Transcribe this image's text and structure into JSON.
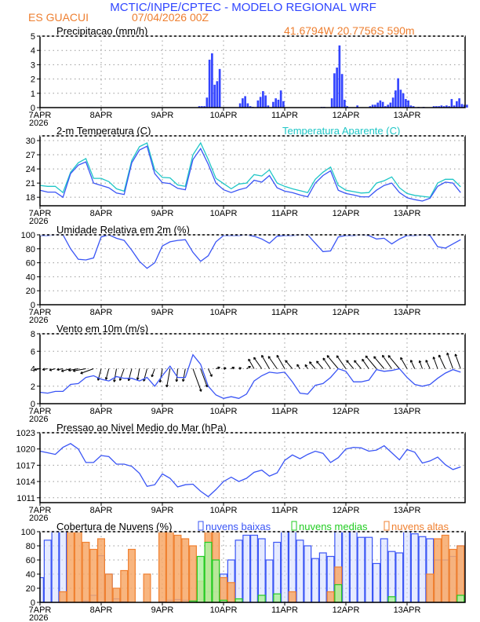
{
  "header": {
    "title": "MCTIC/INPE/CPTEC - MODELO REGIONAL WRF",
    "location": "ES GUACUI",
    "run": "07/04/2026 00Z",
    "coords": "41.6794W 20.7756S 590m"
  },
  "colors": {
    "title": "#2f45ff",
    "subtitle": "#ee7f30",
    "line_main": "#3a55f5",
    "line_apparent": "#1fc6c6",
    "bar_precip": "#3344ff",
    "cloud_low": "#3a55f5",
    "cloud_mid": "#22cc22",
    "cloud_high": "#f08030"
  },
  "x_axis": {
    "start": "07APR2026 00Z",
    "end": "13APR2026 23Z",
    "tick_labels": [
      "7APR",
      "8APR",
      "9APR",
      "10APR",
      "11APR",
      "12APR",
      "13APR"
    ],
    "year_label": "2026"
  },
  "chart_data": [
    {
      "type": "bar",
      "title": "Precipitacao (mm/h)",
      "interval": "hourly",
      "ylim": [
        0,
        5
      ],
      "yticks": [
        0,
        1,
        2,
        3,
        4,
        5
      ],
      "grid": true,
      "values": [
        0,
        0,
        0,
        0,
        0,
        0,
        0,
        0,
        0,
        0,
        0,
        0,
        0,
        0,
        0,
        0,
        0,
        0,
        0.03,
        0.03,
        0.03,
        0,
        0,
        0,
        0,
        0,
        0,
        0,
        0,
        0,
        0,
        0,
        0,
        0,
        0,
        0,
        0,
        0,
        0,
        0,
        0,
        0,
        0,
        0,
        0,
        0,
        0.03,
        0,
        0,
        0,
        0,
        0,
        0,
        0,
        0,
        0,
        0,
        0,
        0,
        0,
        0,
        0,
        0.1,
        0.1,
        0.1,
        0.7,
        3.35,
        3.8,
        1.6,
        1.85,
        2.7,
        0,
        0,
        0,
        0,
        0,
        0,
        0,
        0.3,
        0.65,
        0.8,
        0.3,
        0.1,
        0.05,
        0,
        0.5,
        0.75,
        1.15,
        0.85,
        0.15,
        0,
        0.4,
        0.65,
        0.55,
        1.2,
        0.45,
        0,
        0,
        0,
        0,
        0,
        0,
        0,
        0,
        0,
        0,
        0,
        0,
        0,
        0,
        0.05,
        0.05,
        0,
        0,
        0.65,
        2.4,
        2.8,
        4.35,
        2.35,
        0.55,
        0.1,
        0,
        0,
        0,
        0.15,
        0,
        0,
        0,
        0,
        0.1,
        0.2,
        0.2,
        0.35,
        0.5,
        0.4,
        0.1,
        0.2,
        0.35,
        0.7,
        1.2,
        2.05,
        1.25,
        1.0,
        0.6,
        0.5,
        0.15,
        0.1,
        0,
        0.05,
        0,
        0.05,
        0,
        0,
        0,
        0.1,
        0.1,
        0.1,
        0.15,
        0.1,
        0.15,
        0.1,
        0.6,
        0.15,
        0.45,
        0.65,
        0.25,
        0.2,
        0.2
      ]
    },
    {
      "type": "line",
      "title": "2-m Temperatura (C)",
      "interval": "3-hourly",
      "ylim": [
        16.2,
        31
      ],
      "yticks": [
        18,
        21,
        24,
        27,
        30
      ],
      "grid": true,
      "series": [
        {
          "name": "2-m Temperatura (C)",
          "values": [
            19.5,
            19.1,
            19.1,
            18.0,
            23.0,
            24.8,
            25.5,
            21.0,
            20.5,
            20.0,
            18.9,
            18.6,
            25.3,
            28.0,
            28.8,
            23.0,
            21.1,
            20.9,
            19.9,
            19.6,
            26.0,
            28.3,
            25.0,
            21.0,
            19.6,
            19.0,
            19.6,
            20.0,
            21.6,
            21.2,
            22.6,
            20.0,
            19.3,
            19.0,
            18.5,
            18.1,
            21.0,
            22.6,
            23.6,
            19.5,
            18.8,
            18.5,
            18.1,
            18.1,
            19.5,
            20.5,
            21.0,
            19.0,
            17.9,
            17.5,
            17.2,
            17.8,
            20.3,
            21.2,
            21.0,
            19.0
          ]
        },
        {
          "name": "Temperatura Aparente (C)",
          "values": [
            20.5,
            20.3,
            20.3,
            19.0,
            23.3,
            25.3,
            26.2,
            22.0,
            22.0,
            21.3,
            19.8,
            19.3,
            25.8,
            28.7,
            29.5,
            23.8,
            22.2,
            22.1,
            20.6,
            20.3,
            27.0,
            29.5,
            26.0,
            22.0,
            20.9,
            19.8,
            20.8,
            21.0,
            22.8,
            22.5,
            23.8,
            21.0,
            20.3,
            19.8,
            19.4,
            19.0,
            21.8,
            23.3,
            24.4,
            20.5,
            19.5,
            19.2,
            18.9,
            19.0,
            21.0,
            21.5,
            22.3,
            20.0,
            18.8,
            18.4,
            18.2,
            18.0,
            21.0,
            21.8,
            21.8,
            20.2
          ]
        }
      ]
    },
    {
      "type": "line",
      "title": "Umidade Relativa em 2m (%)",
      "interval": "3-hourly",
      "ylim": [
        0,
        100
      ],
      "yticks": [
        0,
        20,
        40,
        60,
        80,
        100
      ],
      "grid": true,
      "values": [
        99,
        99,
        100,
        100,
        80,
        65,
        64,
        67,
        97,
        100,
        95,
        92,
        78,
        62,
        52,
        60,
        84,
        90,
        92,
        93,
        75,
        62,
        70,
        90,
        99,
        99,
        99,
        100,
        98,
        94,
        88,
        98,
        99,
        99,
        100,
        100,
        88,
        76,
        77,
        97,
        99,
        99,
        100,
        99,
        94,
        95,
        87,
        94,
        99,
        99,
        100,
        99,
        83,
        81,
        87,
        93
      ]
    },
    {
      "type": "line",
      "title": "Vento em 10m (m/s)",
      "interval": "3-hourly",
      "ylim": [
        0,
        8
      ],
      "yticks": [
        0,
        2,
        4,
        6,
        8
      ],
      "grid": true,
      "speed": [
        1.3,
        1.2,
        1.4,
        1.4,
        2.2,
        2.3,
        3.0,
        3.2,
        2.8,
        2.6,
        3.1,
        2.9,
        2.9,
        2.6,
        3.0,
        2.0,
        3.2,
        4.3,
        3.0,
        3.0,
        5.6,
        4.5,
        2.0,
        1.0,
        0.6,
        0.8,
        0.6,
        1.1,
        2.6,
        3.2,
        3.6,
        3.5,
        3.6,
        2.5,
        1.2,
        1.1,
        2.1,
        2.3,
        3.0,
        4.0,
        3.7,
        2.5,
        2.5,
        2.7,
        3.9,
        3.7,
        3.8,
        4.0,
        3.0,
        2.2,
        2.0,
        2.2,
        2.9,
        3.5,
        3.9,
        3.6
      ],
      "direction_from_deg": [
        80,
        80,
        75,
        80,
        75,
        80,
        80,
        70,
        15,
        15,
        10,
        20,
        15,
        10,
        15,
        20,
        10,
        10,
        5,
        10,
        340,
        340,
        335,
        250,
        250,
        245,
        250,
        240,
        150,
        145,
        150,
        145,
        150,
        140,
        145,
        150,
        140,
        140,
        145,
        140,
        145,
        140,
        140,
        145,
        140,
        140,
        145,
        140,
        150,
        155,
        160,
        155,
        160,
        155,
        160,
        160
      ]
    },
    {
      "type": "line",
      "title": "Pressao ao Nivel Medio do Mar (hPa)",
      "interval": "3-hourly",
      "ylim": [
        1010.1,
        1023
      ],
      "yticks": [
        1011,
        1014,
        1017,
        1020,
        1023
      ],
      "grid": true,
      "values": [
        1019.6,
        1019.3,
        1019.0,
        1020.3,
        1021.0,
        1020.0,
        1017.5,
        1017.5,
        1018.8,
        1018.6,
        1017.2,
        1017.2,
        1016.8,
        1015.5,
        1013.1,
        1013.4,
        1015.4,
        1014.6,
        1013.0,
        1013.4,
        1013.5,
        1012.2,
        1011.2,
        1012.5,
        1014.0,
        1014.8,
        1014.0,
        1014.6,
        1015.7,
        1016.1,
        1015.0,
        1015.6,
        1017.9,
        1018.9,
        1018.2,
        1019.0,
        1019.6,
        1019.2,
        1017.5,
        1018.4,
        1020.0,
        1020.3,
        1020.2,
        1019.6,
        1019.8,
        1020.6,
        1019.3,
        1018.0,
        1019.9,
        1019.4,
        1017.4,
        1017.8,
        1018.5,
        1017.1,
        1016.2,
        1016.7
      ]
    },
    {
      "type": "bar",
      "title": "Cobertura de Nuvens (%)",
      "interval": "3-hourly",
      "ylim": [
        0,
        100
      ],
      "yticks": [
        0,
        20,
        40,
        60,
        80,
        100
      ],
      "grid": true,
      "legend": "top",
      "series": [
        {
          "name": "nuvens baixas",
          "values": [
            35,
            88,
            100,
            100,
            0,
            0,
            2,
            10,
            66,
            40,
            5,
            1,
            0,
            0,
            0,
            0,
            1,
            3,
            4,
            3,
            2,
            4,
            15,
            15,
            40,
            60,
            88,
            95,
            95,
            90,
            60,
            85,
            100,
            100,
            88,
            80,
            62,
            70,
            65,
            100,
            100,
            100,
            92,
            92,
            55,
            90,
            72,
            70,
            100,
            97,
            93,
            90,
            60,
            60,
            65,
            80
          ]
        },
        {
          "name": "nuvens medias",
          "values": [
            0,
            0,
            0,
            0,
            0,
            0,
            0,
            0,
            0,
            0,
            0,
            0,
            0,
            0,
            0,
            0,
            0,
            0,
            0,
            0,
            2,
            65,
            85,
            60,
            3,
            0,
            5,
            0,
            0,
            10,
            0,
            12,
            0,
            0,
            0,
            0,
            0,
            0,
            0,
            25,
            0,
            0,
            0,
            0,
            0,
            0,
            8,
            0,
            0,
            0,
            0,
            0,
            0,
            0,
            0,
            10
          ]
        },
        {
          "name": "nuvens altas",
          "values": [
            0,
            0,
            0,
            15,
            100,
            100,
            85,
            75,
            90,
            40,
            20,
            45,
            75,
            0,
            40,
            0,
            100,
            100,
            95,
            90,
            80,
            30,
            100,
            100,
            35,
            28,
            0,
            0,
            0,
            0,
            0,
            0,
            0,
            15,
            0,
            0,
            0,
            0,
            15,
            50,
            0,
            0,
            0,
            0,
            0,
            0,
            0,
            0,
            0,
            0,
            0,
            40,
            90,
            95,
            75,
            80
          ]
        }
      ]
    }
  ]
}
